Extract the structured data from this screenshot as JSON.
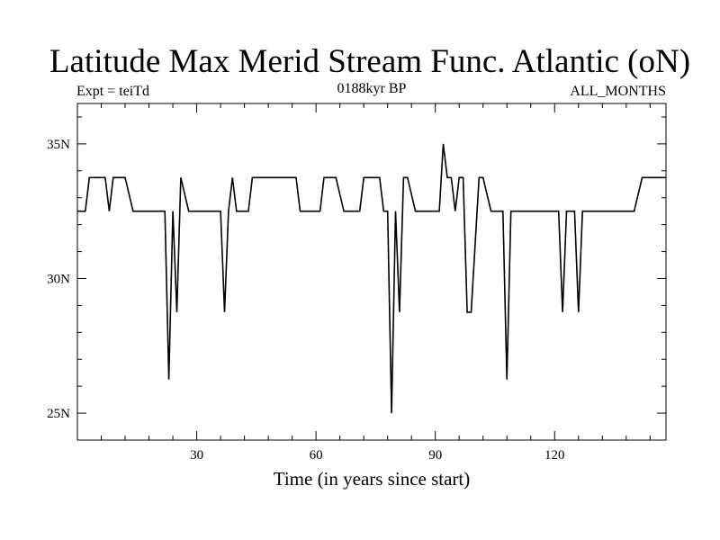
{
  "chart_data": {
    "type": "line",
    "title": "Latitude Max Merid Stream Func. Atlantic (oN)",
    "subtitle_left": "Expt = teiTd",
    "subtitle_center": "0188kyr BP",
    "subtitle_right": "ALL_MONTHS",
    "xlabel": "Time (in years since start)",
    "ylabel": "",
    "xlim": [
      0,
      148
    ],
    "ylim": [
      24,
      36.5
    ],
    "x_ticks": [
      30,
      60,
      90,
      120
    ],
    "x_tick_labels": [
      "30",
      "60",
      "90",
      "120"
    ],
    "y_ticks": [
      25,
      30,
      35
    ],
    "y_tick_labels": [
      "25N",
      "30N",
      "35N"
    ],
    "grid": false,
    "series": [
      {
        "color": "#000000",
        "x": [
          0,
          2,
          3,
          7,
          8,
          9,
          12,
          14,
          15,
          21,
          22,
          23,
          24,
          25,
          26,
          28,
          32,
          35,
          36,
          37,
          38,
          39,
          40,
          43,
          44,
          45,
          55,
          56,
          61,
          62,
          65,
          67,
          71,
          72,
          76,
          77,
          78,
          79,
          80,
          81,
          82,
          83,
          85,
          86,
          91,
          92,
          93,
          94,
          95,
          96,
          97,
          98,
          99,
          101,
          102,
          104,
          107,
          108,
          109,
          110,
          113,
          116,
          120,
          121,
          122,
          123,
          125,
          126,
          127,
          128,
          131,
          135,
          140,
          142,
          148
        ],
        "y": [
          32.5,
          32.5,
          33.75,
          33.75,
          32.5,
          33.75,
          33.75,
          32.5,
          32.5,
          32.5,
          32.5,
          26.25,
          32.5,
          28.75,
          33.75,
          32.5,
          32.5,
          32.5,
          32.5,
          28.75,
          32.5,
          33.75,
          32.5,
          32.5,
          33.75,
          33.75,
          33.75,
          32.5,
          32.5,
          33.75,
          33.75,
          32.5,
          32.5,
          33.75,
          33.75,
          32.5,
          32.5,
          25,
          32.5,
          28.75,
          33.75,
          33.75,
          32.5,
          32.5,
          32.5,
          35,
          33.75,
          33.75,
          32.5,
          33.75,
          33.75,
          28.75,
          28.75,
          33.75,
          33.75,
          32.5,
          32.5,
          26.25,
          32.5,
          32.5,
          32.5,
          32.5,
          32.5,
          32.5,
          28.75,
          32.5,
          32.5,
          28.75,
          32.5,
          32.5,
          32.5,
          32.5,
          32.5,
          33.75,
          33.75
        ]
      }
    ]
  }
}
